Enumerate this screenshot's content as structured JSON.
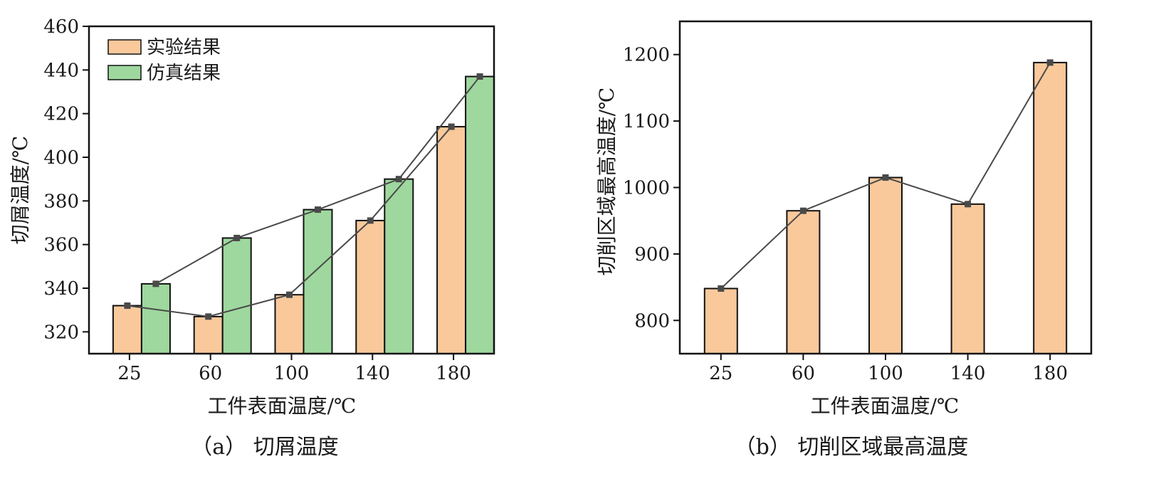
{
  "colors": {
    "experiment": "#f9c99b",
    "simulation": "#9ed89e",
    "bar_edge": "#111111",
    "line": "#4a4a4a",
    "marker": "#4a4a4a",
    "axis": "#111111"
  },
  "chart_data": [
    {
      "type": "bar",
      "caption": "（a）  切屑温度",
      "categories": [
        "25",
        "60",
        "100",
        "140",
        "180"
      ],
      "series": [
        {
          "name": "实验结果",
          "values": [
            332,
            327,
            337,
            371,
            414
          ]
        },
        {
          "name": "仿真结果",
          "values": [
            342,
            363,
            376,
            390,
            437
          ]
        }
      ],
      "overlay": "line connecting top of each series bar with square markers",
      "xlabel": "工件表面温度/℃",
      "ylabel": "切屑温度/℃",
      "ylim": [
        310,
        460
      ],
      "yticks": [
        320,
        340,
        360,
        380,
        400,
        420,
        440,
        460
      ],
      "legend": "top-left",
      "grid": false
    },
    {
      "type": "bar",
      "caption": "（b）  切削区域最高温度",
      "categories": [
        "25",
        "60",
        "100",
        "140",
        "180"
      ],
      "series": [
        {
          "values": [
            848,
            965,
            1015,
            975,
            1188
          ]
        }
      ],
      "overlay": "line connecting bar tops with square markers",
      "xlabel": "工件表面温度/℃",
      "ylabel": "切削区域最高温度/℃",
      "ylim": [
        750,
        1250
      ],
      "yticks": [
        800,
        900,
        1000,
        1100,
        1200
      ],
      "grid": false
    }
  ]
}
